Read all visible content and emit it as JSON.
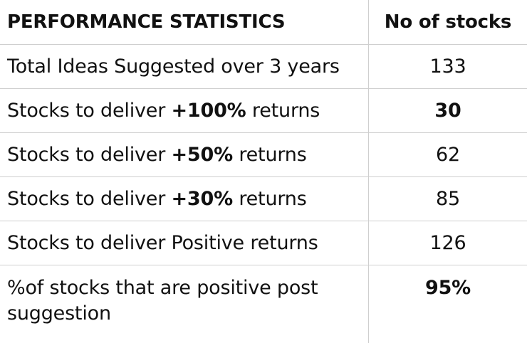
{
  "table": {
    "headers": {
      "statistic": "PERFORMANCE STATISTICS",
      "count": "No of stocks"
    },
    "rows": [
      {
        "pre": "Total Ideas Suggested over 3 years",
        "bold": "",
        "post": "",
        "value": "133",
        "value_bold": false
      },
      {
        "pre": "Stocks to deliver ",
        "bold": "+100%",
        "post": " returns",
        "value": "30",
        "value_bold": true
      },
      {
        "pre": "Stocks to deliver ",
        "bold": "+50%",
        "post": " returns",
        "value": "62",
        "value_bold": false
      },
      {
        "pre": "Stocks to deliver ",
        "bold": "+30%",
        "post": " returns",
        "value": "85",
        "value_bold": false
      },
      {
        "pre": "Stocks to deliver Positive returns",
        "bold": "",
        "post": "",
        "value": "126",
        "value_bold": false
      },
      {
        "pre": "%of stocks that are positive post suggestion",
        "bold": "",
        "post": "",
        "value": "95%",
        "value_bold": true
      }
    ]
  }
}
